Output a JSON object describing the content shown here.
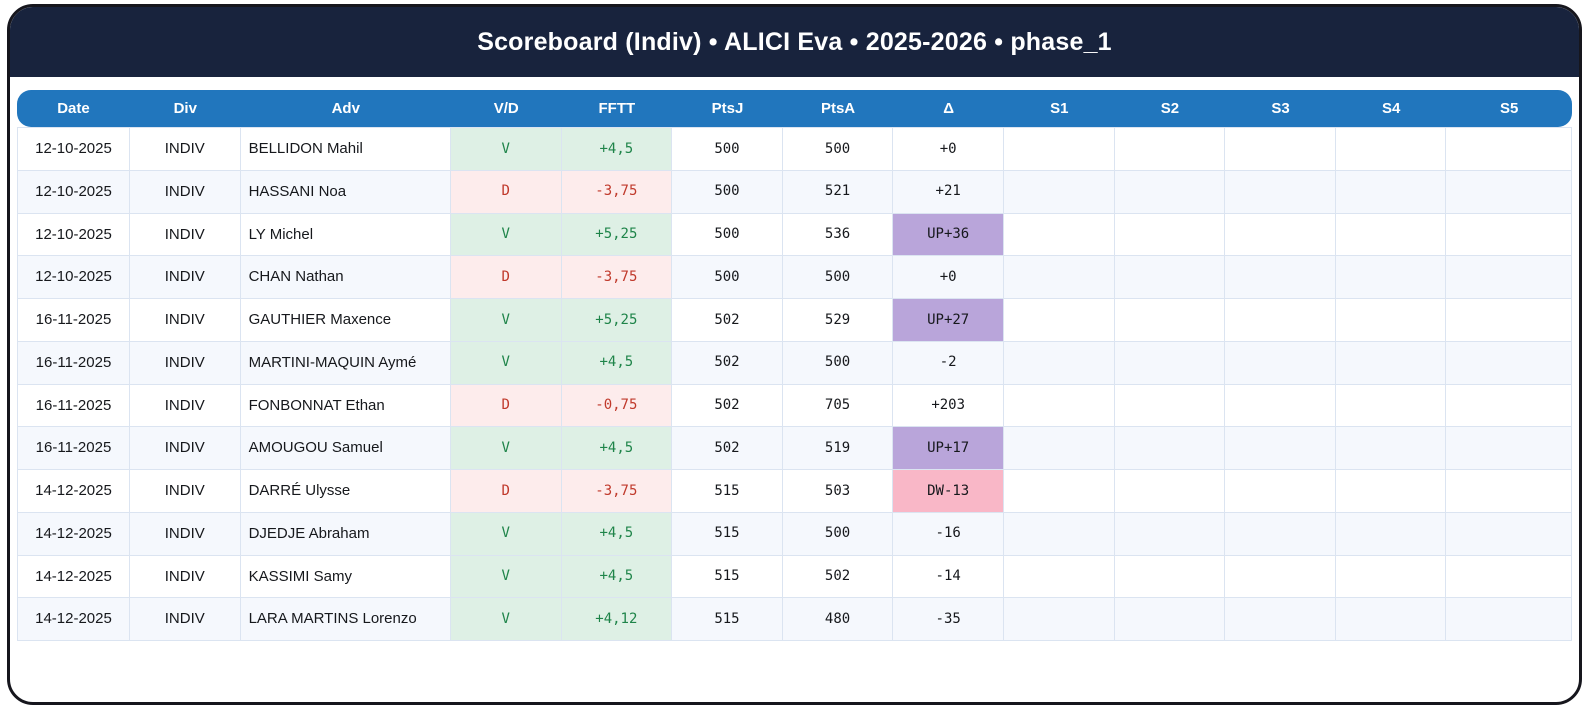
{
  "title": "Scoreboard (Indiv) • ALICI Eva • 2025-2026 • phase_1",
  "table": {
    "columns": [
      "Date",
      "Div",
      "Adv",
      "V/D",
      "FFTT",
      "PtsJ",
      "PtsA",
      "Δ",
      "S1",
      "S2",
      "S3",
      "S4",
      "S5"
    ],
    "rows": [
      {
        "date": "12-10-2025",
        "div": "INDIV",
        "adv": "BELLIDON Mahil",
        "vd": "V",
        "fftt": "+4,5",
        "ptsj": "500",
        "ptsa": "500",
        "delta": "+0",
        "s": [
          "",
          "",
          "",
          "",
          ""
        ]
      },
      {
        "date": "12-10-2025",
        "div": "INDIV",
        "adv": "HASSANI Noa",
        "vd": "D",
        "fftt": "-3,75",
        "ptsj": "500",
        "ptsa": "521",
        "delta": "+21",
        "s": [
          "",
          "",
          "",
          "",
          ""
        ]
      },
      {
        "date": "12-10-2025",
        "div": "INDIV",
        "adv": "LY Michel",
        "vd": "V",
        "fftt": "+5,25",
        "ptsj": "500",
        "ptsa": "536",
        "delta": "UP+36",
        "s": [
          "",
          "",
          "",
          "",
          ""
        ]
      },
      {
        "date": "12-10-2025",
        "div": "INDIV",
        "adv": "CHAN Nathan",
        "vd": "D",
        "fftt": "-3,75",
        "ptsj": "500",
        "ptsa": "500",
        "delta": "+0",
        "s": [
          "",
          "",
          "",
          "",
          ""
        ]
      },
      {
        "date": "16-11-2025",
        "div": "INDIV",
        "adv": "GAUTHIER Maxence",
        "vd": "V",
        "fftt": "+5,25",
        "ptsj": "502",
        "ptsa": "529",
        "delta": "UP+27",
        "s": [
          "",
          "",
          "",
          "",
          ""
        ]
      },
      {
        "date": "16-11-2025",
        "div": "INDIV",
        "adv": "MARTINI-MAQUIN Aymé",
        "vd": "V",
        "fftt": "+4,5",
        "ptsj": "502",
        "ptsa": "500",
        "delta": "-2",
        "s": [
          "",
          "",
          "",
          "",
          ""
        ]
      },
      {
        "date": "16-11-2025",
        "div": "INDIV",
        "adv": "FONBONNAT Ethan",
        "vd": "D",
        "fftt": "-0,75",
        "ptsj": "502",
        "ptsa": "705",
        "delta": "+203",
        "s": [
          "",
          "",
          "",
          "",
          ""
        ]
      },
      {
        "date": "16-11-2025",
        "div": "INDIV",
        "adv": "AMOUGOU Samuel",
        "vd": "V",
        "fftt": "+4,5",
        "ptsj": "502",
        "ptsa": "519",
        "delta": "UP+17",
        "s": [
          "",
          "",
          "",
          "",
          ""
        ]
      },
      {
        "date": "14-12-2025",
        "div": "INDIV",
        "adv": "DARRÉ Ulysse",
        "vd": "D",
        "fftt": "-3,75",
        "ptsj": "515",
        "ptsa": "503",
        "delta": "DW-13",
        "s": [
          "",
          "",
          "",
          "",
          ""
        ]
      },
      {
        "date": "14-12-2025",
        "div": "INDIV",
        "adv": "DJEDJE Abraham",
        "vd": "V",
        "fftt": "+4,5",
        "ptsj": "515",
        "ptsa": "500",
        "delta": "-16",
        "s": [
          "",
          "",
          "",
          "",
          ""
        ]
      },
      {
        "date": "14-12-2025",
        "div": "INDIV",
        "adv": "KASSIMI Samy",
        "vd": "V",
        "fftt": "+4,5",
        "ptsj": "515",
        "ptsa": "502",
        "delta": "-14",
        "s": [
          "",
          "",
          "",
          "",
          ""
        ]
      },
      {
        "date": "14-12-2025",
        "div": "INDIV",
        "adv": "LARA MARTINS Lorenzo",
        "vd": "V",
        "fftt": "+4,12",
        "ptsj": "515",
        "ptsa": "480",
        "delta": "-35",
        "s": [
          "",
          "",
          "",
          "",
          ""
        ]
      }
    ]
  },
  "colors": {
    "titlebar_bg": "#18233d",
    "header_bg": "#2176bd",
    "win_bg": "#def0e5",
    "win_text": "#1e8449",
    "loss_bg": "#fdecec",
    "loss_text": "#c0392b",
    "delta_up_bg": "#b9a5da",
    "delta_down_bg": "#f9b7c7",
    "row_alt_bg": "#f5f8fd",
    "cell_border": "#dbe4f1",
    "card_border": "#16161d"
  }
}
